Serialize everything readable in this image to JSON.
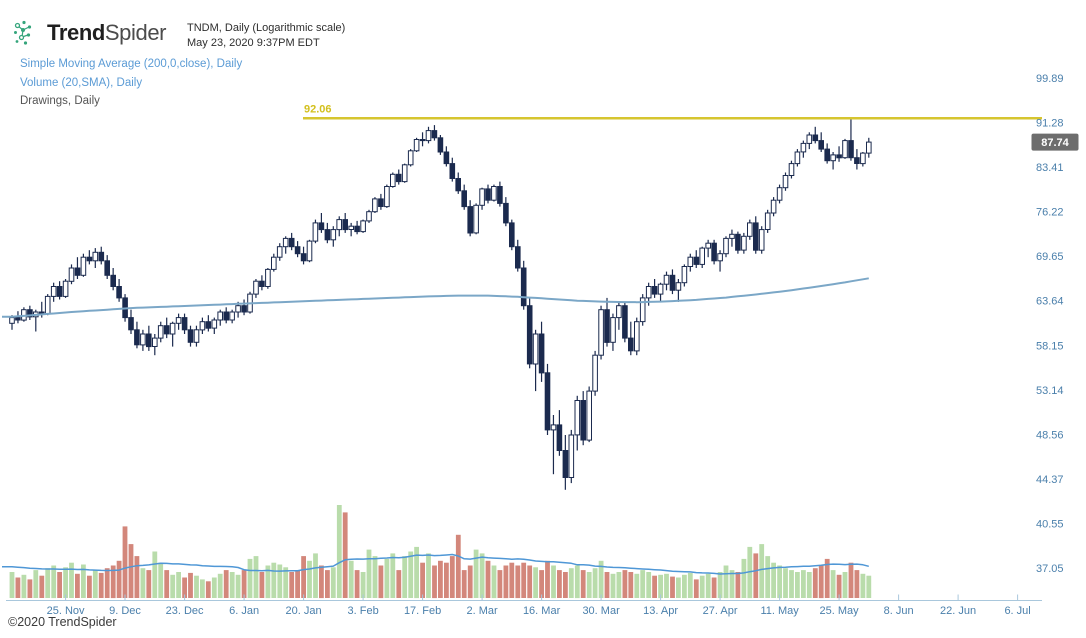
{
  "header": {
    "brand": {
      "bold": "Trend",
      "light": "Spider"
    },
    "symbol_line": "TNDM, Daily (Logarithmic scale)",
    "datetime_line": "May 23, 2020 9:37PM EDT"
  },
  "legend": {
    "items": [
      {
        "label": "Simple Moving Average (200,0,close), Daily",
        "color": "#5b9bd5"
      },
      {
        "label": "Volume (20,SMA), Daily",
        "color": "#5b9bd5"
      },
      {
        "label": "Drawings, Daily",
        "color": "#555555"
      }
    ]
  },
  "footer": {
    "copyright": "©2020 TrendSpider"
  },
  "colors": {
    "candle": "#1b2a4e",
    "candle_up_fill": "#ffffff",
    "price_sma": "#7ba7c7",
    "vol_up": "#b9dcab",
    "vol_down": "#d3877b",
    "vol_sma": "#4f97d6",
    "drawing": "#d6c52f",
    "drawing_label": "#d3c01d",
    "axis_text": "#4a7fab",
    "axis_line": "#a9c7dc",
    "badge_bg": "#6d6d6d",
    "badge_text": "#ffffff",
    "logo_teal": "#35a57c"
  },
  "chart_data": {
    "type": "candlestick+volume",
    "symbol": "TNDM",
    "timeframe": "Daily",
    "scale": "logarithmic",
    "title": "TNDM, Daily (Logarithmic scale)",
    "last_price": "87.74",
    "drawing": {
      "price": 92.06,
      "label": "92.06"
    },
    "y_axis_labels": [
      "99.89",
      "91.28",
      "83.41",
      "76.22",
      "69.65",
      "63.64",
      "58.15",
      "53.14",
      "48.56",
      "44.37",
      "40.55",
      "37.05"
    ],
    "y_range": [
      37.05,
      99.89
    ],
    "x_axis_labels": [
      "25. Nov",
      "9. Dec",
      "23. Dec",
      "6. Jan",
      "20. Jan",
      "3. Feb",
      "17. Feb",
      "2. Mar",
      "16. Mar",
      "30. Mar",
      "13. Apr",
      "27. Apr",
      "11. May",
      "25. May",
      "8. Jun",
      "22. Jun",
      "6. Jul"
    ],
    "x_tick_start_index": 9,
    "x_tick_step": 10,
    "sma200": {
      "label": "Simple Moving Average (200,0,close)",
      "points": [
        [
          0,
          61.6
        ],
        [
          5,
          61.9
        ],
        [
          10,
          62.2
        ],
        [
          15,
          62.45
        ],
        [
          20,
          62.7
        ],
        [
          25,
          62.85
        ],
        [
          30,
          63.0
        ],
        [
          35,
          63.15
        ],
        [
          40,
          63.3
        ],
        [
          45,
          63.45
        ],
        [
          50,
          63.6
        ],
        [
          55,
          63.75
        ],
        [
          60,
          63.9
        ],
        [
          65,
          64.05
        ],
        [
          70,
          64.2
        ],
        [
          75,
          64.3
        ],
        [
          80,
          64.3
        ],
        [
          85,
          64.15
        ],
        [
          90,
          63.9
        ],
        [
          95,
          63.65
        ],
        [
          100,
          63.5
        ],
        [
          105,
          63.45
        ],
        [
          110,
          63.55
        ],
        [
          115,
          63.75
        ],
        [
          120,
          64.05
        ],
        [
          125,
          64.45
        ],
        [
          130,
          64.9
        ],
        [
          135,
          65.45
        ],
        [
          140,
          66.05
        ],
        [
          144,
          66.6
        ]
      ]
    },
    "volume_sma_period": 20,
    "candles_format": [
      "open",
      "high",
      "low",
      "close",
      "volume_rel"
    ],
    "candles": [
      [
        60.8,
        61.8,
        60,
        61.5,
        28
      ],
      [
        61.5,
        62.3,
        60.8,
        61.2,
        22
      ],
      [
        61.2,
        62.8,
        61,
        62.5,
        25
      ],
      [
        62.5,
        63,
        61.2,
        61.6,
        20
      ],
      [
        61.6,
        62.5,
        59.8,
        62.2,
        30
      ],
      [
        62.2,
        63.5,
        61.5,
        62,
        24
      ],
      [
        62,
        64.5,
        61.8,
        64.2,
        32
      ],
      [
        64.2,
        66,
        63.5,
        65.5,
        35
      ],
      [
        65.5,
        66.2,
        63.8,
        64.2,
        28
      ],
      [
        64.2,
        66.5,
        64,
        66.2,
        33
      ],
      [
        66.2,
        68.5,
        65.8,
        68,
        38
      ],
      [
        68,
        69.5,
        66.5,
        67,
        26
      ],
      [
        67,
        70,
        66.8,
        69.5,
        36
      ],
      [
        69.5,
        70.5,
        68.5,
        69,
        24
      ],
      [
        69,
        70.8,
        68,
        70.2,
        30
      ],
      [
        70.2,
        71,
        68.5,
        69,
        27
      ],
      [
        69,
        69.8,
        66.5,
        67,
        32
      ],
      [
        67,
        68,
        65,
        65.5,
        35
      ],
      [
        65.5,
        66.5,
        63.5,
        64,
        40
      ],
      [
        64,
        64.5,
        61,
        61.5,
        77
      ],
      [
        61.5,
        62.5,
        59.5,
        60,
        58
      ],
      [
        60,
        61,
        57.8,
        58.2,
        45
      ],
      [
        58.2,
        60,
        57.5,
        59.5,
        32
      ],
      [
        59.5,
        60.5,
        57.5,
        58,
        30
      ],
      [
        58,
        59.5,
        57,
        59,
        50
      ],
      [
        59,
        61,
        58.5,
        60.5,
        38
      ],
      [
        60.5,
        61.5,
        59,
        59.5,
        30
      ],
      [
        59.5,
        61,
        58,
        60.8,
        25
      ],
      [
        60.8,
        62,
        60,
        61.5,
        28
      ],
      [
        61.5,
        62,
        59.5,
        60,
        22
      ],
      [
        60,
        60.5,
        58,
        58.5,
        27
      ],
      [
        58.5,
        60.5,
        58,
        60,
        24
      ],
      [
        60,
        61.5,
        59.5,
        61,
        20
      ],
      [
        61,
        61.8,
        59.8,
        60.2,
        18
      ],
      [
        60.2,
        61.5,
        59.5,
        61.2,
        22
      ],
      [
        61.2,
        62.5,
        60.5,
        62.2,
        26
      ],
      [
        62.2,
        62.8,
        60.8,
        61.2,
        30
      ],
      [
        61.2,
        62.5,
        60.8,
        62.2,
        28
      ],
      [
        62.2,
        63.5,
        61.5,
        63,
        25
      ],
      [
        63,
        63.8,
        61.8,
        62.2,
        30
      ],
      [
        62.2,
        64.8,
        62,
        64.5,
        42
      ],
      [
        64.5,
        66.5,
        64,
        66.2,
        45
      ],
      [
        66.2,
        67,
        65,
        65.5,
        28
      ],
      [
        65.5,
        68,
        65.2,
        67.8,
        35
      ],
      [
        67.8,
        70,
        67.5,
        69.5,
        38
      ],
      [
        69.5,
        71.5,
        69,
        71,
        36
      ],
      [
        71,
        72.5,
        70,
        72.2,
        33
      ],
      [
        72.2,
        73,
        70.5,
        71,
        28
      ],
      [
        71,
        71.8,
        69.5,
        70,
        30
      ],
      [
        70,
        71,
        68.5,
        69,
        45
      ],
      [
        69,
        72,
        68.8,
        71.8,
        40
      ],
      [
        71.8,
        75,
        71.5,
        74.5,
        48
      ],
      [
        74.5,
        76,
        73,
        73.5,
        35
      ],
      [
        73.5,
        74.5,
        71.5,
        72,
        30
      ],
      [
        72,
        74,
        71,
        73.5,
        33
      ],
      [
        73.5,
        75.5,
        72.5,
        75,
        100
      ],
      [
        75,
        76,
        73,
        73.5,
        92
      ],
      [
        73.5,
        74.5,
        72.5,
        74,
        40
      ],
      [
        74,
        74.8,
        72.8,
        73.2,
        30
      ],
      [
        73.2,
        75,
        73,
        74.8,
        28
      ],
      [
        74.8,
        76.5,
        74.5,
        76.2,
        52
      ],
      [
        76.2,
        78.5,
        76,
        78.2,
        45
      ],
      [
        78.2,
        79,
        76.5,
        77,
        35
      ],
      [
        77,
        80.5,
        76.8,
        80.2,
        42
      ],
      [
        80.2,
        82.5,
        80,
        82.2,
        48
      ],
      [
        82.2,
        83,
        80.5,
        81,
        30
      ],
      [
        81,
        84,
        80.8,
        83.8,
        45
      ],
      [
        83.8,
        86.5,
        83.5,
        86.2,
        50
      ],
      [
        86.2,
        88.5,
        86,
        88.2,
        55
      ],
      [
        88.2,
        89.5,
        87,
        88,
        38
      ],
      [
        88,
        90.5,
        87.5,
        89.8,
        48
      ],
      [
        89.8,
        90.8,
        88,
        88.5,
        35
      ],
      [
        88.5,
        89,
        85.5,
        86,
        40
      ],
      [
        86,
        87,
        83.5,
        84,
        38
      ],
      [
        84,
        85,
        81,
        81.5,
        45
      ],
      [
        81.5,
        82.5,
        79,
        79.5,
        68
      ],
      [
        79.5,
        80.5,
        76.5,
        77,
        30
      ],
      [
        77,
        78,
        72.5,
        73,
        35
      ],
      [
        73,
        77.5,
        72.8,
        77.2,
        52
      ],
      [
        77.2,
        80,
        76.5,
        79.8,
        48
      ],
      [
        79.8,
        80.5,
        77.5,
        78,
        40
      ],
      [
        78,
        80.5,
        77.8,
        80.2,
        35
      ],
      [
        80.2,
        81,
        77,
        77.5,
        30
      ],
      [
        77.5,
        78.5,
        74,
        74.5,
        35
      ],
      [
        74.5,
        75,
        70.5,
        71,
        38
      ],
      [
        71,
        72,
        67.5,
        68,
        35
      ],
      [
        68,
        69,
        62.5,
        63,
        38
      ],
      [
        63,
        64,
        55.5,
        56,
        35
      ],
      [
        56,
        60,
        53,
        59.5,
        33
      ],
      [
        59.5,
        61,
        54,
        55,
        30
      ],
      [
        55,
        56,
        48.5,
        49,
        40
      ],
      [
        49,
        50.5,
        44.8,
        49.5,
        35
      ],
      [
        49.5,
        51,
        46.5,
        47,
        30
      ],
      [
        47,
        48.5,
        43.4,
        44.5,
        28
      ],
      [
        44.5,
        49,
        44,
        48.5,
        32
      ],
      [
        48.5,
        52.5,
        47,
        52,
        35
      ],
      [
        52,
        53,
        47.5,
        48,
        30
      ],
      [
        48,
        53.5,
        47.8,
        53,
        28
      ],
      [
        53,
        57.5,
        52.5,
        57,
        32
      ],
      [
        57,
        63,
        56.5,
        62.5,
        40
      ],
      [
        62.5,
        64,
        58,
        58.5,
        28
      ],
      [
        58.5,
        62,
        57.5,
        61.5,
        26
      ],
      [
        61.5,
        63.5,
        60,
        63,
        28
      ],
      [
        63,
        63.5,
        58.5,
        59,
        30
      ],
      [
        59,
        61,
        57,
        57.5,
        28
      ],
      [
        57.5,
        61.5,
        57,
        61,
        26
      ],
      [
        61,
        64.5,
        60.5,
        64,
        30
      ],
      [
        64,
        66,
        63,
        65.5,
        28
      ],
      [
        65.5,
        66.5,
        64,
        64.5,
        24
      ],
      [
        64.5,
        66,
        63.5,
        65.8,
        25
      ],
      [
        65.8,
        67.5,
        65,
        67,
        26
      ],
      [
        67,
        67.8,
        64.5,
        65,
        23
      ],
      [
        65,
        66.5,
        63.5,
        66,
        22
      ],
      [
        66,
        68.5,
        65.5,
        68.2,
        25
      ],
      [
        68.2,
        70,
        67.5,
        69.5,
        27
      ],
      [
        69.5,
        70.5,
        68,
        68.5,
        20
      ],
      [
        68.5,
        71,
        68,
        70.8,
        24
      ],
      [
        70.8,
        72,
        69.5,
        71.5,
        26
      ],
      [
        71.5,
        72,
        68.5,
        69,
        22
      ],
      [
        69,
        70.5,
        67.5,
        70,
        28
      ],
      [
        70,
        72.5,
        69.5,
        72.2,
        35
      ],
      [
        72.2,
        73.5,
        71,
        72.8,
        30
      ],
      [
        72.8,
        73.2,
        70,
        70.5,
        28
      ],
      [
        70.5,
        73,
        70,
        72.5,
        42
      ],
      [
        72.5,
        75,
        72,
        74.5,
        55
      ],
      [
        74.5,
        75.5,
        70,
        70.5,
        48
      ],
      [
        70.5,
        74,
        70,
        73.5,
        58
      ],
      [
        73.5,
        76.5,
        73,
        76,
        45
      ],
      [
        76,
        78.5,
        75.5,
        78,
        38
      ],
      [
        78,
        80.5,
        77.5,
        80,
        35
      ],
      [
        80,
        82.5,
        79.5,
        82,
        32
      ],
      [
        82,
        84.5,
        81.5,
        84,
        30
      ],
      [
        84,
        86.5,
        83.5,
        86,
        28
      ],
      [
        86,
        88,
        85,
        87.5,
        30
      ],
      [
        87.5,
        89.5,
        86.5,
        89,
        28
      ],
      [
        89,
        90.5,
        87.5,
        88,
        32
      ],
      [
        88,
        89.5,
        86,
        86.5,
        35
      ],
      [
        86.5,
        87.5,
        84,
        84.5,
        42
      ],
      [
        84.5,
        86,
        83,
        85.5,
        30
      ],
      [
        85.5,
        87,
        84.3,
        85,
        25
      ],
      [
        85,
        88.3,
        84.8,
        88,
        28
      ],
      [
        88,
        92,
        84.5,
        85,
        38
      ],
      [
        85,
        86.5,
        83,
        84,
        30
      ],
      [
        84,
        86,
        83.5,
        85.8,
        26
      ],
      [
        85.8,
        88.5,
        85,
        87.74,
        24
      ]
    ]
  }
}
